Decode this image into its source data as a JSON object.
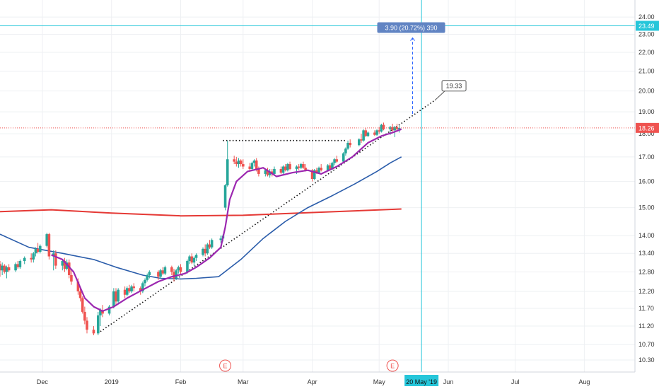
{
  "chart_data": {
    "type": "candlestick",
    "y_axis": {
      "ticks": [
        "24.00",
        "23.00",
        "22.00",
        "21.00",
        "20.00",
        "19.00",
        "18.00",
        "17.00",
        "16.00",
        "15.00",
        "14.00",
        "13.40",
        "12.80",
        "12.20",
        "11.70",
        "11.20",
        "10.70",
        "10.30"
      ],
      "scale": "log",
      "range": [
        10.0,
        24.6
      ]
    },
    "x_axis": {
      "labels": [
        "Dec",
        "2019",
        "Feb",
        "Mar",
        "Apr",
        "May",
        "Jun",
        "Jul",
        "Aug"
      ],
      "range": [
        "2018-11-12",
        "2019-08-18"
      ],
      "grid": true
    },
    "price_tags": [
      {
        "label": "23.49",
        "value": 23.49,
        "color": "#26c6da"
      },
      {
        "label": "18.26",
        "value": 18.26,
        "color": "#ef5350"
      }
    ],
    "crosshair": {
      "date": "2019-05-20",
      "label": "20 May '19",
      "price": 23.49
    },
    "measure": {
      "label": "3.90 (20.72%) 390",
      "from_date": "2019-05-16",
      "from": 18.9,
      "to": 22.8
    },
    "trendline": {
      "label": "19.33",
      "from_date": "2018-12-27",
      "from": 11.05,
      "to_date": "2019-05-26",
      "to": 19.55
    },
    "resistance": {
      "from_date": "2019-02-20",
      "to_date": "2019-04-16",
      "value": 17.7
    },
    "earnings_markers": [
      {
        "label": "E",
        "date": "2019-02-21"
      },
      {
        "label": "E",
        "date": "2019-05-07"
      }
    ],
    "colors": {
      "up": "#26a69a",
      "down": "#ef5350",
      "ma_fast": "#9c27b0",
      "ma_mid": "#2a5caa",
      "ma_slow": "#e53935"
    },
    "ma_fast": [
      [
        "2018-12-05",
        13.35
      ],
      [
        "2018-12-10",
        13.2
      ],
      [
        "2018-12-15",
        12.8
      ],
      [
        "2018-12-20",
        12.0
      ],
      [
        "2018-12-24",
        11.75
      ],
      [
        "2018-12-28",
        11.62
      ],
      [
        "2019-01-02",
        11.75
      ],
      [
        "2019-01-08",
        12.0
      ],
      [
        "2019-01-15",
        12.25
      ],
      [
        "2019-01-22",
        12.5
      ],
      [
        "2019-01-28",
        12.65
      ],
      [
        "2019-02-03",
        12.75
      ],
      [
        "2019-02-08",
        12.95
      ],
      [
        "2019-02-14",
        13.25
      ],
      [
        "2019-02-19",
        13.6
      ],
      [
        "2019-02-21",
        14.3
      ],
      [
        "2019-02-23",
        15.3
      ],
      [
        "2019-02-26",
        16.0
      ],
      [
        "2019-03-03",
        16.4
      ],
      [
        "2019-03-10",
        16.55
      ],
      [
        "2019-03-16",
        16.2
      ],
      [
        "2019-03-23",
        16.35
      ],
      [
        "2019-03-30",
        16.45
      ],
      [
        "2019-04-05",
        16.3
      ],
      [
        "2019-04-12",
        16.6
      ],
      [
        "2019-04-19",
        17.0
      ],
      [
        "2019-04-26",
        17.6
      ],
      [
        "2019-05-02",
        17.9
      ],
      [
        "2019-05-07",
        18.05
      ],
      [
        "2019-05-11",
        18.2
      ]
    ],
    "ma_mid": [
      [
        "2018-11-12",
        14.05
      ],
      [
        "2018-11-25",
        13.6
      ],
      [
        "2018-12-10",
        13.4
      ],
      [
        "2018-12-24",
        13.2
      ],
      [
        "2019-01-03",
        12.95
      ],
      [
        "2019-01-15",
        12.7
      ],
      [
        "2019-01-23",
        12.6
      ],
      [
        "2019-02-01",
        12.58
      ],
      [
        "2019-02-08",
        12.6
      ],
      [
        "2019-02-18",
        12.65
      ],
      [
        "2019-02-28",
        13.2
      ],
      [
        "2019-03-10",
        13.9
      ],
      [
        "2019-03-20",
        14.5
      ],
      [
        "2019-03-30",
        15.0
      ],
      [
        "2019-04-10",
        15.45
      ],
      [
        "2019-04-20",
        15.9
      ],
      [
        "2019-04-30",
        16.4
      ],
      [
        "2019-05-06",
        16.75
      ],
      [
        "2019-05-11",
        17.0
      ]
    ],
    "ma_slow": [
      [
        "2018-11-12",
        14.85
      ],
      [
        "2018-12-05",
        14.92
      ],
      [
        "2019-01-01",
        14.8
      ],
      [
        "2019-02-01",
        14.7
      ],
      [
        "2019-03-01",
        14.72
      ],
      [
        "2019-04-01",
        14.82
      ],
      [
        "2019-05-11",
        14.95
      ]
    ],
    "candles": [
      [
        "2018-11-12",
        13.05,
        13.15,
        12.65,
        12.85
      ],
      [
        "2018-11-13",
        12.85,
        13.1,
        12.7,
        13.0
      ],
      [
        "2018-11-14",
        13.0,
        13.05,
        12.75,
        12.8
      ],
      [
        "2018-11-15",
        12.8,
        13.0,
        12.6,
        12.95
      ],
      [
        "2018-11-16",
        12.95,
        13.05,
        12.8,
        12.85
      ],
      [
        "2018-11-19",
        12.85,
        13.1,
        12.8,
        13.05
      ],
      [
        "2018-11-20",
        13.05,
        13.15,
        12.9,
        12.95
      ],
      [
        "2018-11-21",
        12.95,
        13.2,
        12.9,
        13.15
      ],
      [
        "2018-11-23",
        13.15,
        13.3,
        13.05,
        13.25
      ],
      [
        "2018-11-26",
        13.25,
        13.4,
        13.1,
        13.2
      ],
      [
        "2018-11-27",
        13.2,
        13.45,
        13.1,
        13.4
      ],
      [
        "2018-11-28",
        13.4,
        13.6,
        13.3,
        13.55
      ],
      [
        "2018-11-29",
        13.55,
        13.75,
        13.4,
        13.45
      ],
      [
        "2018-11-30",
        13.45,
        13.7,
        13.4,
        13.65
      ],
      [
        "2018-12-03",
        13.65,
        14.1,
        13.6,
        14.05
      ],
      [
        "2018-12-04",
        14.05,
        14.1,
        13.2,
        13.3
      ],
      [
        "2018-12-06",
        13.3,
        13.5,
        12.85,
        13.4
      ],
      [
        "2018-12-07",
        13.4,
        13.5,
        12.9,
        13.0
      ],
      [
        "2018-12-10",
        13.0,
        13.2,
        12.85,
        13.15
      ],
      [
        "2018-12-11",
        13.15,
        13.25,
        12.8,
        12.9
      ],
      [
        "2018-12-12",
        12.9,
        13.2,
        12.85,
        13.1
      ],
      [
        "2018-12-13",
        13.1,
        13.2,
        12.6,
        12.7
      ],
      [
        "2018-12-14",
        12.7,
        12.9,
        12.4,
        12.5
      ],
      [
        "2018-12-17",
        12.5,
        12.6,
        12.1,
        12.2
      ],
      [
        "2018-12-18",
        12.2,
        12.3,
        11.9,
        12.0
      ],
      [
        "2018-12-19",
        12.0,
        12.05,
        11.55,
        11.6
      ],
      [
        "2018-12-20",
        11.6,
        11.75,
        11.25,
        11.35
      ],
      [
        "2018-12-21",
        11.35,
        11.45,
        11.0,
        11.1
      ],
      [
        "2018-12-24",
        11.1,
        11.2,
        10.95,
        11.0
      ],
      [
        "2018-12-26",
        11.0,
        11.6,
        10.95,
        11.5
      ],
      [
        "2018-12-27",
        11.5,
        11.7,
        11.2,
        11.65
      ],
      [
        "2018-12-28",
        11.65,
        11.8,
        11.45,
        11.55
      ],
      [
        "2018-12-31",
        11.55,
        11.8,
        11.5,
        11.75
      ],
      [
        "2019-01-02",
        11.75,
        12.3,
        11.7,
        12.2
      ],
      [
        "2019-01-03",
        12.2,
        12.3,
        11.8,
        11.9
      ],
      [
        "2019-01-04",
        11.9,
        12.3,
        11.85,
        12.25
      ],
      [
        "2019-01-07",
        12.25,
        12.35,
        12.0,
        12.1
      ],
      [
        "2019-01-08",
        12.1,
        12.35,
        12.05,
        12.3
      ],
      [
        "2019-01-09",
        12.3,
        12.4,
        12.15,
        12.2
      ],
      [
        "2019-01-10",
        12.2,
        12.4,
        12.15,
        12.35
      ],
      [
        "2019-01-11",
        12.35,
        12.45,
        12.2,
        12.3
      ],
      [
        "2019-01-14",
        12.3,
        12.35,
        12.1,
        12.2
      ],
      [
        "2019-01-15",
        12.2,
        12.5,
        12.15,
        12.45
      ],
      [
        "2019-01-16",
        12.45,
        12.6,
        12.35,
        12.55
      ],
      [
        "2019-01-17",
        12.55,
        12.75,
        12.5,
        12.7
      ],
      [
        "2019-01-18",
        12.7,
        12.85,
        12.6,
        12.8
      ],
      [
        "2019-01-22",
        12.8,
        12.85,
        12.55,
        12.65
      ],
      [
        "2019-01-23",
        12.65,
        12.9,
        12.6,
        12.85
      ],
      [
        "2019-01-24",
        12.85,
        12.95,
        12.7,
        12.75
      ],
      [
        "2019-01-25",
        12.75,
        13.0,
        12.7,
        12.95
      ],
      [
        "2019-01-28",
        12.95,
        13.0,
        12.7,
        12.8
      ],
      [
        "2019-01-29",
        12.8,
        12.9,
        12.5,
        12.6
      ],
      [
        "2019-01-30",
        12.6,
        12.9,
        12.55,
        12.85
      ],
      [
        "2019-01-31",
        12.85,
        13.0,
        12.75,
        12.95
      ],
      [
        "2019-02-01",
        12.95,
        13.05,
        12.7,
        12.8
      ],
      [
        "2019-02-04",
        12.8,
        13.2,
        12.75,
        13.15
      ],
      [
        "2019-02-05",
        13.15,
        13.35,
        13.05,
        13.3
      ],
      [
        "2019-02-06",
        13.3,
        13.4,
        13.05,
        13.1
      ],
      [
        "2019-02-07",
        13.1,
        13.3,
        13.0,
        13.25
      ],
      [
        "2019-02-08",
        13.25,
        13.4,
        13.15,
        13.35
      ],
      [
        "2019-02-11",
        13.35,
        13.6,
        13.3,
        13.55
      ],
      [
        "2019-02-12",
        13.55,
        13.7,
        13.3,
        13.4
      ],
      [
        "2019-02-13",
        13.4,
        13.75,
        13.35,
        13.7
      ],
      [
        "2019-02-14",
        13.7,
        13.85,
        13.55,
        13.6
      ],
      [
        "2019-02-15",
        13.6,
        13.9,
        13.55,
        13.85
      ],
      [
        "2019-02-19",
        13.85,
        14.0,
        13.75,
        13.9
      ],
      [
        "2019-02-20",
        13.9,
        14.05,
        13.8,
        14.0
      ],
      [
        "2019-02-21",
        15.0,
        15.9,
        14.9,
        15.85
      ],
      [
        "2019-02-22",
        15.85,
        17.7,
        15.8,
        16.9
      ],
      [
        "2019-02-25",
        16.9,
        17.05,
        16.7,
        16.8
      ],
      [
        "2019-02-26",
        16.8,
        17.0,
        16.6,
        16.7
      ],
      [
        "2019-02-27",
        16.7,
        16.95,
        16.55,
        16.85
      ],
      [
        "2019-02-28",
        16.85,
        16.9,
        16.6,
        16.7
      ],
      [
        "2019-03-01",
        16.7,
        16.9,
        16.5,
        16.6
      ],
      [
        "2019-03-04",
        16.6,
        16.75,
        16.4,
        16.5
      ],
      [
        "2019-03-05",
        16.5,
        16.8,
        16.45,
        16.75
      ],
      [
        "2019-03-06",
        16.75,
        16.9,
        16.6,
        16.85
      ],
      [
        "2019-03-07",
        16.85,
        16.95,
        16.4,
        16.5
      ],
      [
        "2019-03-08",
        16.5,
        16.6,
        16.2,
        16.3
      ],
      [
        "2019-03-11",
        16.3,
        16.5,
        16.2,
        16.45
      ],
      [
        "2019-03-12",
        16.45,
        16.55,
        16.2,
        16.25
      ],
      [
        "2019-03-13",
        16.25,
        16.5,
        16.15,
        16.4
      ],
      [
        "2019-03-14",
        16.4,
        16.5,
        16.2,
        16.3
      ],
      [
        "2019-03-15",
        16.3,
        16.6,
        16.25,
        16.5
      ],
      [
        "2019-03-18",
        16.5,
        16.6,
        16.3,
        16.35
      ],
      [
        "2019-03-19",
        16.35,
        16.65,
        16.3,
        16.6
      ],
      [
        "2019-03-20",
        16.6,
        16.7,
        16.4,
        16.45
      ],
      [
        "2019-03-21",
        16.45,
        16.75,
        16.4,
        16.7
      ],
      [
        "2019-03-22",
        16.7,
        16.8,
        16.45,
        16.5
      ],
      [
        "2019-03-25",
        16.5,
        16.65,
        16.3,
        16.6
      ],
      [
        "2019-03-26",
        16.6,
        16.7,
        16.45,
        16.55
      ],
      [
        "2019-03-27",
        16.55,
        16.75,
        16.5,
        16.7
      ],
      [
        "2019-03-28",
        16.7,
        16.8,
        16.5,
        16.55
      ],
      [
        "2019-03-29",
        16.55,
        16.7,
        16.4,
        16.45
      ],
      [
        "2019-04-01",
        16.45,
        16.5,
        16.0,
        16.1
      ],
      [
        "2019-04-02",
        16.1,
        16.5,
        16.05,
        16.45
      ],
      [
        "2019-04-03",
        16.45,
        16.55,
        16.3,
        16.35
      ],
      [
        "2019-04-04",
        16.35,
        16.6,
        16.3,
        16.55
      ],
      [
        "2019-04-05",
        16.55,
        16.7,
        16.4,
        16.45
      ],
      [
        "2019-04-08",
        16.45,
        16.7,
        16.4,
        16.65
      ],
      [
        "2019-04-09",
        16.65,
        16.75,
        16.45,
        16.5
      ],
      [
        "2019-04-10",
        16.5,
        16.8,
        16.45,
        16.75
      ],
      [
        "2019-04-11",
        16.75,
        16.95,
        16.65,
        16.9
      ],
      [
        "2019-04-12",
        16.9,
        17.05,
        16.75,
        16.8
      ],
      [
        "2019-04-15",
        16.8,
        17.2,
        16.75,
        17.15
      ],
      [
        "2019-04-16",
        17.15,
        17.4,
        17.05,
        17.35
      ],
      [
        "2019-04-17",
        17.35,
        17.7,
        17.3,
        17.6
      ],
      [
        "2019-04-18",
        17.6,
        17.75,
        17.4,
        17.5
      ],
      [
        "2019-04-22",
        17.5,
        17.8,
        17.45,
        17.75
      ],
      [
        "2019-04-23",
        17.75,
        18.0,
        17.6,
        17.7
      ],
      [
        "2019-04-24",
        17.7,
        18.2,
        17.65,
        18.15
      ],
      [
        "2019-04-25",
        18.15,
        18.25,
        17.85,
        17.9
      ],
      [
        "2019-04-26",
        17.9,
        18.1,
        17.85,
        18.05
      ],
      [
        "2019-04-29",
        18.05,
        18.15,
        17.9,
        17.95
      ],
      [
        "2019-04-30",
        17.95,
        18.2,
        17.9,
        18.15
      ],
      [
        "2019-05-01",
        18.15,
        18.3,
        18.0,
        18.1
      ],
      [
        "2019-05-02",
        18.1,
        18.45,
        18.05,
        18.4
      ],
      [
        "2019-05-03",
        18.4,
        18.5,
        18.15,
        18.2
      ],
      [
        "2019-05-06",
        18.2,
        18.35,
        17.95,
        18.3
      ],
      [
        "2019-05-07",
        18.3,
        18.45,
        18.1,
        18.15
      ],
      [
        "2019-05-08",
        18.15,
        18.35,
        17.85,
        18.3
      ],
      [
        "2019-05-09",
        18.3,
        18.45,
        18.1,
        18.2
      ],
      [
        "2019-05-10",
        18.2,
        18.35,
        18.05,
        18.26
      ]
    ]
  }
}
